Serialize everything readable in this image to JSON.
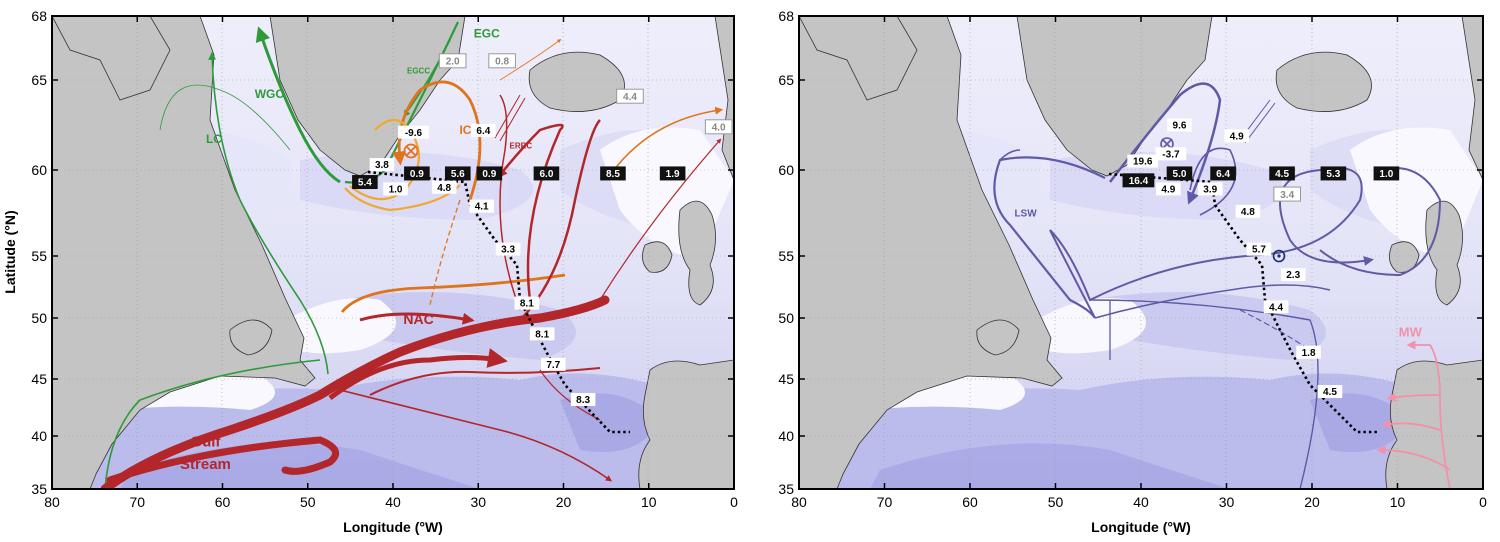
{
  "panels": [
    {
      "id": "left",
      "x_ticks": [
        "80",
        "70",
        "60",
        "50",
        "40",
        "30",
        "20",
        "10",
        "0"
      ],
      "y_ticks": [
        "35",
        "40",
        "45",
        "50",
        "55",
        "60",
        "65",
        "68"
      ],
      "xlabel": "Longitude (°W)",
      "ylabel": "Latitude (°N)",
      "current_labels": [
        {
          "text": "LC",
          "lon": 61,
          "lat": 61.5,
          "color": "#2e9a3a",
          "size": 12
        },
        {
          "text": "WGC",
          "lon": 54.5,
          "lat": 64,
          "color": "#2e9a3a",
          "size": 12
        },
        {
          "text": "EGCC",
          "lon": 37,
          "lat": 65.3,
          "color": "#2e9a3a",
          "size": 8
        },
        {
          "text": "EGC",
          "lon": 29,
          "lat": 67,
          "color": "#2e9a3a",
          "size": 12
        },
        {
          "text": "IC",
          "lon": 31.5,
          "lat": 62,
          "color": "#e0741c",
          "size": 12
        },
        {
          "text": "ERRC",
          "lon": 25,
          "lat": 61.2,
          "color": "#b3262a",
          "size": 8
        },
        {
          "text": "NAC",
          "lon": 37,
          "lat": 49.5,
          "color": "#b3262a",
          "size": 14
        },
        {
          "text": "Gulf",
          "lon": 62,
          "lat": 39,
          "color": "#b3262a",
          "size": 15
        },
        {
          "text": "Stream",
          "lon": 62,
          "lat": 36.9,
          "color": "#b3262a",
          "size": 15
        }
      ],
      "section_values": [
        {
          "text": "3.8",
          "lon": 41.3,
          "lat": 60.3,
          "style": "white"
        },
        {
          "text": "5.4",
          "lon": 43.3,
          "lat": 59.3,
          "style": "black"
        },
        {
          "text": "1.0",
          "lon": 39.7,
          "lat": 58.9,
          "style": "white"
        },
        {
          "text": "0.9",
          "lon": 37.2,
          "lat": 59.8,
          "style": "black"
        },
        {
          "text": "5.6",
          "lon": 32.4,
          "lat": 59.8,
          "style": "black"
        },
        {
          "text": "4.8",
          "lon": 34,
          "lat": 59,
          "style": "white"
        },
        {
          "text": "0.9",
          "lon": 28.7,
          "lat": 59.8,
          "style": "black"
        },
        {
          "text": "4.1",
          "lon": 29.6,
          "lat": 57.9,
          "style": "white"
        },
        {
          "text": "6.0",
          "lon": 22,
          "lat": 59.8,
          "style": "black"
        },
        {
          "text": "8.5",
          "lon": 14.2,
          "lat": 59.8,
          "style": "black"
        },
        {
          "text": "1.9",
          "lon": 7.2,
          "lat": 59.8,
          "style": "black"
        },
        {
          "text": "3.3",
          "lon": 26.5,
          "lat": 55.4,
          "style": "white"
        },
        {
          "text": "8.1",
          "lon": 24.3,
          "lat": 51.2,
          "style": "white"
        },
        {
          "text": "8.1",
          "lon": 22.5,
          "lat": 48.7,
          "style": "white"
        },
        {
          "text": "7.7",
          "lon": 21.2,
          "lat": 46.2,
          "style": "white"
        },
        {
          "text": "8.3",
          "lon": 17.7,
          "lat": 43.2,
          "style": "white"
        },
        {
          "text": "-9.6",
          "lon": 37.6,
          "lat": 62.1,
          "style": "white"
        },
        {
          "text": "6.4",
          "lon": 29.4,
          "lat": 62.2,
          "style": "white"
        }
      ],
      "gray_values": [
        {
          "text": "2.0",
          "lon": 33,
          "lat": 65.9
        },
        {
          "text": "0.8",
          "lon": 27.2,
          "lat": 65.9
        },
        {
          "text": "4.4",
          "lon": 12.2,
          "lat": 64.1
        },
        {
          "text": "4.0",
          "lon": 1.8,
          "lat": 62.4
        }
      ]
    },
    {
      "id": "right",
      "x_ticks": [
        "80",
        "70",
        "60",
        "50",
        "40",
        "30",
        "20",
        "10",
        "0"
      ],
      "y_ticks": [
        "35",
        "40",
        "45",
        "50",
        "55",
        "60",
        "65",
        "68"
      ],
      "xlabel": "Longitude (°W)",
      "current_labels": [
        {
          "text": "LSW",
          "lon": 53.5,
          "lat": 57.3,
          "color": "#5e5aa5",
          "size": 10
        },
        {
          "text": "MW",
          "lon": 8.5,
          "lat": 48.5,
          "color": "#f291a8",
          "size": 13
        }
      ],
      "section_values": [
        {
          "text": "19.6",
          "lon": 39.8,
          "lat": 60.5,
          "style": "white"
        },
        {
          "text": "16.4",
          "lon": 40.3,
          "lat": 59.4,
          "style": "black"
        },
        {
          "text": "4.9",
          "lon": 36.8,
          "lat": 58.9,
          "style": "white"
        },
        {
          "text": "5.0",
          "lon": 35.5,
          "lat": 59.8,
          "style": "black"
        },
        {
          "text": "6.4",
          "lon": 30.4,
          "lat": 59.8,
          "style": "black"
        },
        {
          "text": "3.9",
          "lon": 31.9,
          "lat": 58.9,
          "style": "white"
        },
        {
          "text": "4.8",
          "lon": 27.5,
          "lat": 57.6,
          "style": "white"
        },
        {
          "text": "4.5",
          "lon": 23.5,
          "lat": 59.8,
          "style": "black"
        },
        {
          "text": "5.3",
          "lon": 17.5,
          "lat": 59.8,
          "style": "black"
        },
        {
          "text": "1.0",
          "lon": 11.3,
          "lat": 59.8,
          "style": "black"
        },
        {
          "text": "5.7",
          "lon": 26.2,
          "lat": 55.4,
          "style": "white"
        },
        {
          "text": "2.3",
          "lon": 22.2,
          "lat": 53.5,
          "style": "white"
        },
        {
          "text": "4.4",
          "lon": 24.2,
          "lat": 50.9,
          "style": "white"
        },
        {
          "text": "1.8",
          "lon": 20.4,
          "lat": 47.2,
          "style": "white"
        },
        {
          "text": "4.5",
          "lon": 17.9,
          "lat": 43.9,
          "style": "white"
        },
        {
          "text": "9.6",
          "lon": 35.5,
          "lat": 62.5,
          "style": "white"
        },
        {
          "text": "-3.7",
          "lon": 36.5,
          "lat": 60.9,
          "style": "white"
        },
        {
          "text": "4.9",
          "lon": 28.8,
          "lat": 61.9,
          "style": "white"
        }
      ],
      "gray_values": [
        {
          "text": "3.4",
          "lon": 22.9,
          "lat": 58.6
        }
      ]
    }
  ]
}
